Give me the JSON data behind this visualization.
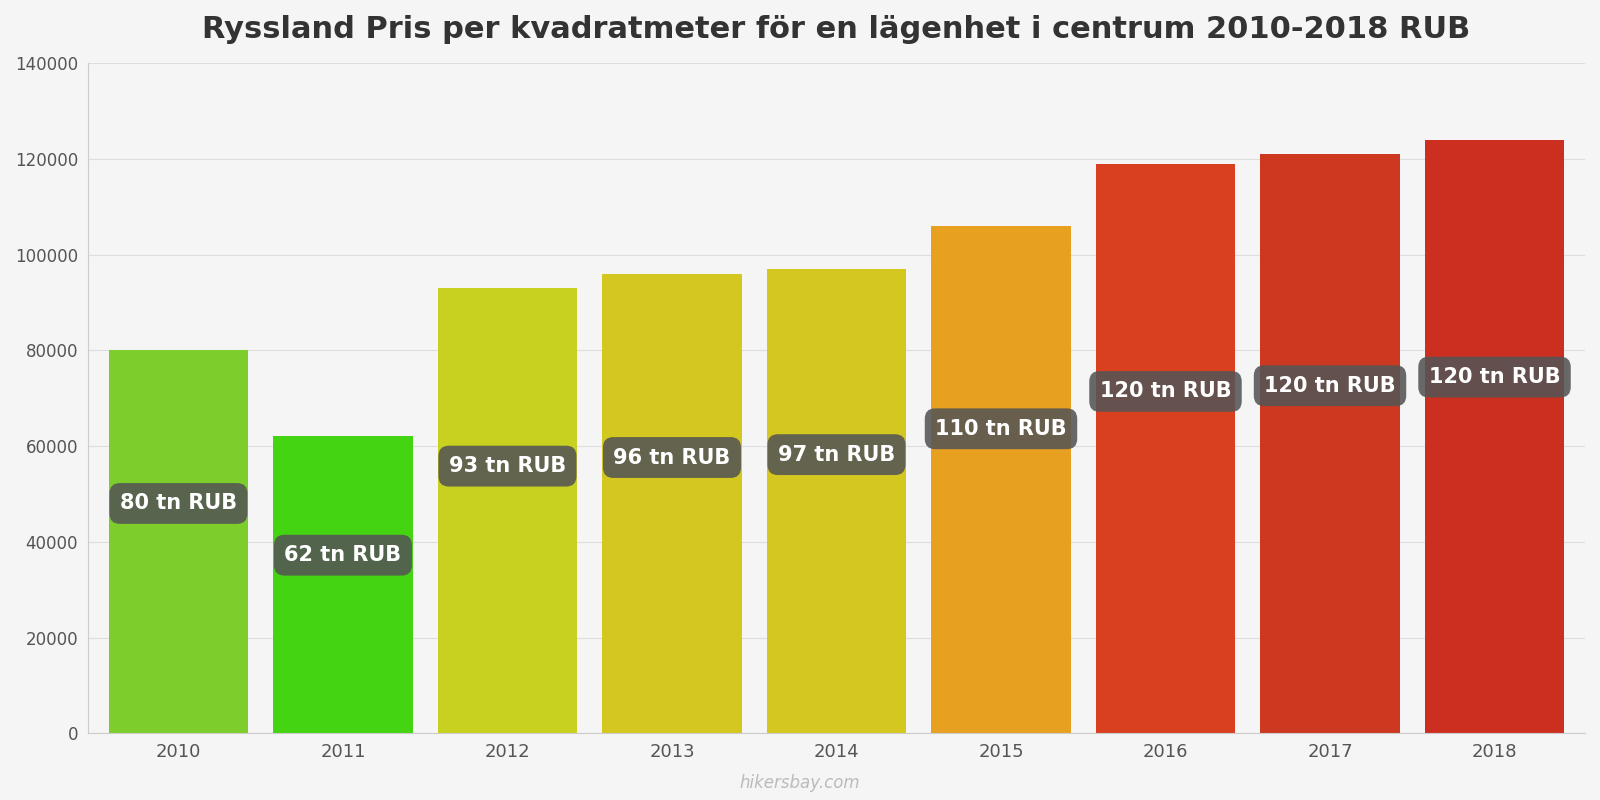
{
  "years": [
    2010,
    2011,
    2012,
    2013,
    2014,
    2015,
    2016,
    2017,
    2018
  ],
  "values": [
    80000,
    62000,
    93000,
    96000,
    97000,
    106000,
    119000,
    121000,
    124000
  ],
  "labels": [
    "80 tn RUB",
    "62 tn RUB",
    "93 tn RUB",
    "96 tn RUB",
    "97 tn RUB",
    "110 tn RUB",
    "120 tn RUB",
    "120 tn RUB",
    "120 tn RUB"
  ],
  "bar_colors": [
    "#7dce2a",
    "#44d411",
    "#c8d020",
    "#d4c820",
    "#d4c820",
    "#e8a020",
    "#d94020",
    "#cc3820",
    "#cc2f20"
  ],
  "title": "Ryssland Pris per kvadratmeter för en lägenhet i centrum 2010-2018 RUB",
  "ylim": [
    0,
    140000
  ],
  "yticks": [
    0,
    20000,
    40000,
    60000,
    80000,
    100000,
    120000,
    140000
  ],
  "background_color": "#f5f5f5",
  "watermark": "hikersbay.com",
  "label_bg_color": "#555555",
  "label_text_color": "#ffffff",
  "title_fontsize": 22,
  "label_fontsize": 15,
  "bar_width": 0.85
}
